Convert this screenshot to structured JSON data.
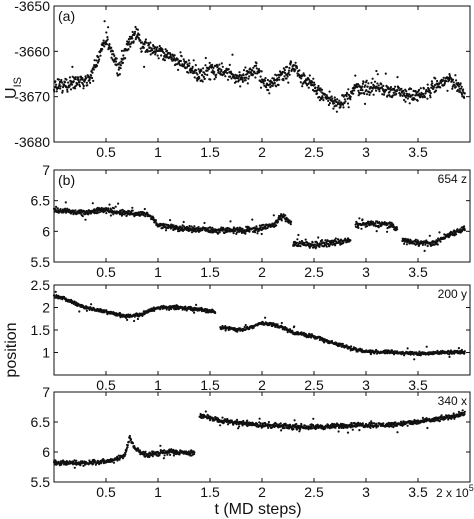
{
  "figure": {
    "xlabel": "t (MD steps)",
    "ylabel_top": "U",
    "ylabel_top_sub": "IS",
    "ylabel_position": "position",
    "x_multiplier_base": "2 x 10",
    "x_multiplier_exp": "5"
  },
  "chart_data": [
    {
      "type": "scatter",
      "panel": "(a)",
      "corner_label": "",
      "ylabel": "U_IS",
      "xlim": [
        0,
        4
      ],
      "ylim": [
        -3680,
        -3650
      ],
      "xticks": [
        0.5,
        1,
        1.5,
        2,
        2.5,
        3,
        3.5
      ],
      "xtick_labels": [
        "0.5",
        "1",
        "1.5",
        "2",
        "2.5",
        "3",
        "3.5"
      ],
      "yticks": [
        -3650,
        -3660,
        -3670,
        -3680
      ],
      "ytick_labels": [
        "-3650",
        "-3660",
        "-3670",
        "-3680"
      ],
      "noise": 2.4,
      "segments": [
        [
          [
            0.0,
            -3668
          ],
          [
            0.2,
            -3667
          ],
          [
            0.35,
            -3666
          ],
          [
            0.45,
            -3660
          ],
          [
            0.5,
            -3657
          ],
          [
            0.55,
            -3660
          ],
          [
            0.62,
            -3664
          ],
          [
            0.7,
            -3659
          ],
          [
            0.78,
            -3656
          ],
          [
            0.85,
            -3659
          ],
          [
            1.0,
            -3660
          ],
          [
            1.2,
            -3662
          ],
          [
            1.4,
            -3665
          ],
          [
            1.6,
            -3664
          ],
          [
            1.8,
            -3666
          ],
          [
            1.95,
            -3664
          ],
          [
            2.05,
            -3668
          ],
          [
            2.2,
            -3665
          ],
          [
            2.3,
            -3663
          ],
          [
            2.4,
            -3666
          ],
          [
            2.6,
            -3670
          ],
          [
            2.75,
            -3672
          ],
          [
            2.9,
            -3668
          ],
          [
            3.1,
            -3668
          ],
          [
            3.3,
            -3669
          ],
          [
            3.5,
            -3670
          ],
          [
            3.65,
            -3668
          ],
          [
            3.8,
            -3666
          ],
          [
            3.95,
            -3669
          ]
        ]
      ]
    },
    {
      "type": "scatter",
      "panel": "(b)",
      "corner_label": "654 z",
      "ylabel": "",
      "xlim": [
        0,
        4
      ],
      "ylim": [
        5.5,
        7
      ],
      "xticks": [
        0.5,
        1,
        1.5,
        2,
        2.5,
        3,
        3.5
      ],
      "xtick_labels": [
        "0.5",
        "1",
        "1.5",
        "2",
        "2.5",
        "3",
        "3.5"
      ],
      "yticks": [
        5.5,
        6,
        6.5,
        7
      ],
      "ytick_labels": [
        "5.5",
        "6",
        "6.5",
        "7"
      ],
      "noise": 0.07,
      "segments": [
        [
          [
            0.0,
            6.35
          ],
          [
            0.3,
            6.3
          ],
          [
            0.5,
            6.35
          ],
          [
            0.7,
            6.3
          ],
          [
            0.9,
            6.28
          ],
          [
            1.0,
            6.1
          ],
          [
            1.2,
            6.05
          ],
          [
            1.5,
            6.02
          ],
          [
            1.8,
            6.02
          ],
          [
            2.0,
            6.05
          ],
          [
            2.1,
            6.1
          ],
          [
            2.2,
            6.25
          ],
          [
            2.28,
            6.15
          ]
        ],
        [
          [
            2.3,
            5.8
          ],
          [
            2.5,
            5.78
          ],
          [
            2.7,
            5.82
          ],
          [
            2.85,
            5.85
          ]
        ],
        [
          [
            2.9,
            6.1
          ],
          [
            3.05,
            6.12
          ],
          [
            3.2,
            6.12
          ],
          [
            3.3,
            6.05
          ]
        ],
        [
          [
            3.35,
            5.85
          ],
          [
            3.5,
            5.82
          ],
          [
            3.65,
            5.8
          ],
          [
            3.8,
            5.95
          ],
          [
            3.95,
            6.05
          ]
        ]
      ]
    },
    {
      "type": "scatter",
      "panel": "",
      "corner_label": "200 y",
      "ylabel": "position",
      "xlim": [
        0,
        4
      ],
      "ylim": [
        0.5,
        2.5
      ],
      "xticks": [
        0.5,
        1,
        1.5,
        2,
        2.5,
        3,
        3.5
      ],
      "xtick_labels": [
        "0.5",
        "1",
        "1.5",
        "2",
        "2.5",
        "3",
        "3.5"
      ],
      "yticks": [
        1,
        1.5,
        2,
        2.5
      ],
      "ytick_labels": [
        "1",
        "1.5",
        "2",
        "2.5"
      ],
      "noise": 0.06,
      "segments": [
        [
          [
            0.0,
            2.25
          ],
          [
            0.1,
            2.2
          ],
          [
            0.3,
            2.0
          ],
          [
            0.5,
            1.9
          ],
          [
            0.7,
            1.8
          ],
          [
            0.85,
            1.85
          ],
          [
            1.0,
            2.0
          ],
          [
            1.2,
            2.0
          ],
          [
            1.45,
            1.95
          ],
          [
            1.55,
            1.9
          ]
        ],
        [
          [
            1.6,
            1.55
          ],
          [
            1.8,
            1.5
          ],
          [
            2.0,
            1.65
          ],
          [
            2.15,
            1.6
          ],
          [
            2.3,
            1.45
          ],
          [
            2.5,
            1.35
          ],
          [
            2.7,
            1.2
          ],
          [
            2.85,
            1.1
          ],
          [
            3.0,
            1.02
          ],
          [
            3.3,
            1.0
          ],
          [
            3.5,
            0.97
          ],
          [
            3.7,
            1.0
          ],
          [
            3.95,
            1.02
          ]
        ]
      ]
    },
    {
      "type": "scatter",
      "panel": "",
      "corner_label": "340 x",
      "ylabel": "",
      "xlim": [
        0,
        4
      ],
      "ylim": [
        5.5,
        7
      ],
      "xticks": [
        0.5,
        1,
        1.5,
        2,
        2.5,
        3,
        3.5
      ],
      "xtick_labels": [
        "0.5",
        "1",
        "1.5",
        "2",
        "2.5",
        "3",
        "3.5"
      ],
      "yticks": [
        5.5,
        6,
        6.5,
        7
      ],
      "ytick_labels": [
        "5.5",
        "6",
        "6.5",
        "7"
      ],
      "noise": 0.06,
      "segments": [
        [
          [
            0.0,
            5.82
          ],
          [
            0.3,
            5.82
          ],
          [
            0.55,
            5.85
          ],
          [
            0.68,
            5.95
          ],
          [
            0.73,
            6.25
          ],
          [
            0.78,
            6.05
          ],
          [
            0.9,
            5.95
          ],
          [
            1.1,
            6.0
          ],
          [
            1.3,
            5.98
          ],
          [
            1.35,
            6.0
          ]
        ],
        [
          [
            1.4,
            6.6
          ],
          [
            1.55,
            6.55
          ],
          [
            1.7,
            6.5
          ],
          [
            1.85,
            6.48
          ],
          [
            2.0,
            6.45
          ],
          [
            2.3,
            6.42
          ],
          [
            2.6,
            6.42
          ],
          [
            2.9,
            6.45
          ],
          [
            3.2,
            6.45
          ],
          [
            3.5,
            6.5
          ],
          [
            3.7,
            6.55
          ],
          [
            3.85,
            6.6
          ],
          [
            3.95,
            6.65
          ]
        ]
      ]
    }
  ]
}
